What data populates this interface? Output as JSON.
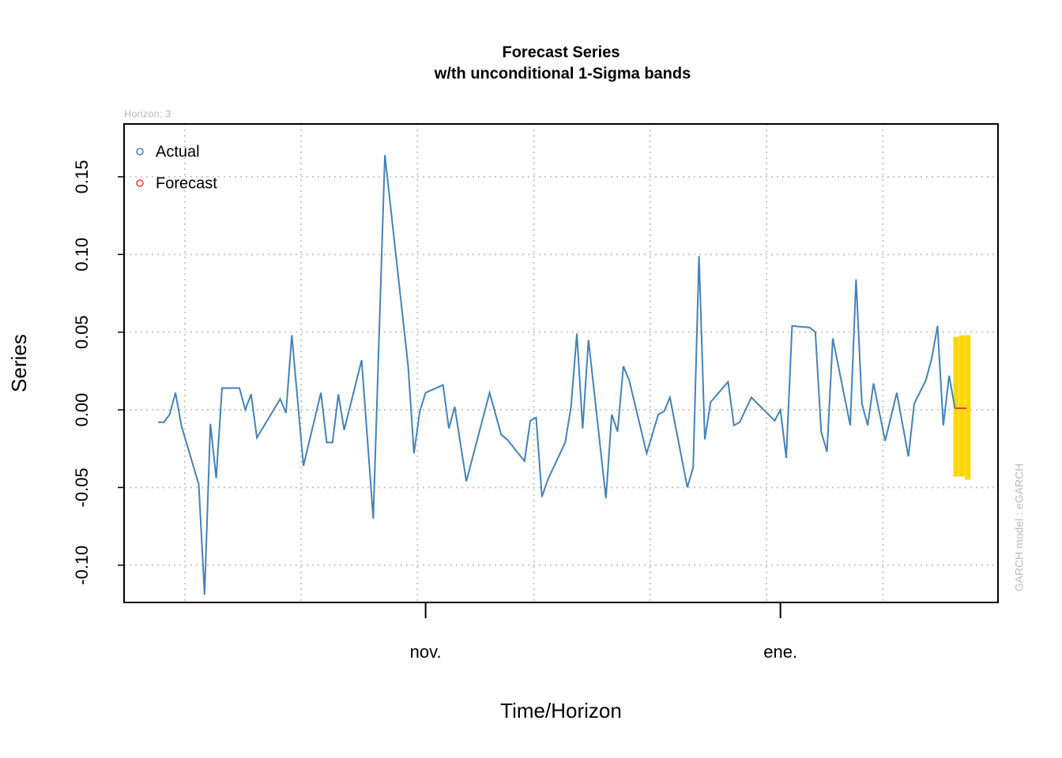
{
  "chart_data": {
    "type": "line",
    "title": "Forecast Series",
    "subtitle": "w/th unconditional 1-Sigma bands",
    "annotation": "Horizon: 3",
    "side_note": "GARCH model :  eGARCH",
    "x_label": "Time/Horizon",
    "y_label": "Series",
    "xlim": [
      -5.84,
      144.4
    ],
    "ylim": [
      -0.124,
      0.184
    ],
    "xticks": [
      {
        "value": 46,
        "label": "nov."
      },
      {
        "value": 107,
        "label": "ene."
      }
    ],
    "xgrid": [
      4.6,
      24.6,
      44.6,
      64.6,
      84.6,
      104.6,
      124.6
    ],
    "yticks": [
      {
        "value": -0.1,
        "label": "-0.10"
      },
      {
        "value": -0.05,
        "label": "-0.05"
      },
      {
        "value": 0,
        "label": "0.00"
      },
      {
        "value": 0.05,
        "label": "0.05"
      },
      {
        "value": 0.1,
        "label": "0.10"
      },
      {
        "value": 0.15,
        "label": "0.15"
      }
    ],
    "grid": true,
    "legend": "topleft",
    "series": [
      {
        "name": "Actual",
        "color": "#4682b4",
        "x": [
          0,
          1,
          2,
          3,
          4,
          7,
          8,
          9,
          10,
          11,
          14,
          15,
          16,
          17,
          21,
          22,
          23,
          25,
          28,
          29,
          30,
          31,
          32,
          35,
          37,
          39,
          43,
          44,
          45,
          46,
          49,
          50,
          51,
          53,
          57,
          59,
          60,
          63,
          64,
          65,
          66,
          67,
          70,
          71,
          72,
          73,
          74,
          77,
          78,
          79,
          80,
          81,
          84,
          86,
          87,
          88,
          91,
          92,
          93,
          94,
          95,
          98,
          99,
          100,
          102,
          106,
          107,
          108,
          109,
          112,
          113,
          114,
          115,
          116,
          119,
          120,
          121,
          122,
          123,
          125,
          127,
          129,
          130,
          132,
          133,
          134,
          135,
          136,
          137
        ],
        "values": [
          -0.008,
          -0.008,
          -0.003,
          0.011,
          -0.01,
          -0.048,
          -0.119,
          -0.009,
          -0.044,
          0.014,
          0.014,
          0,
          0.01,
          -0.018,
          0.007,
          -0.002,
          0.048,
          -0.036,
          0.011,
          -0.021,
          -0.021,
          0.01,
          -0.013,
          0.032,
          -0.07,
          0.164,
          0.028,
          -0.028,
          -0.001,
          0.011,
          0.016,
          -0.012,
          0.002,
          -0.046,
          0.011,
          -0.016,
          -0.019,
          -0.033,
          -0.007,
          -0.005,
          -0.056,
          -0.045,
          -0.021,
          0.002,
          0.049,
          -0.012,
          0.045,
          -0.057,
          -0.003,
          -0.014,
          0.028,
          0.019,
          -0.028,
          -0.003,
          -0.001,
          0.008,
          -0.05,
          -0.037,
          0.099,
          -0.019,
          0.005,
          0.018,
          -0.01,
          -0.008,
          0.008,
          -0.007,
          0,
          -0.031,
          0.054,
          0.053,
          0.05,
          -0.014,
          -0.027,
          0.046,
          -0.01,
          0.084,
          0.004,
          -0.01,
          0.017,
          -0.02,
          0.011,
          -0.03,
          0.004,
          0.019,
          0.033,
          0.054,
          -0.01,
          0.022,
          0.001
        ]
      },
      {
        "name": "Forecast",
        "color": "#e8412c",
        "x": [
          137,
          138,
          139
        ],
        "values": [
          0.001,
          0.001,
          0.001
        ]
      }
    ],
    "band": {
      "color": "#ffd700",
      "x": [
        137,
        138,
        139
      ],
      "upper": [
        0.047,
        0.048,
        0.048
      ],
      "lower": [
        -0.043,
        -0.043,
        -0.045
      ]
    }
  }
}
